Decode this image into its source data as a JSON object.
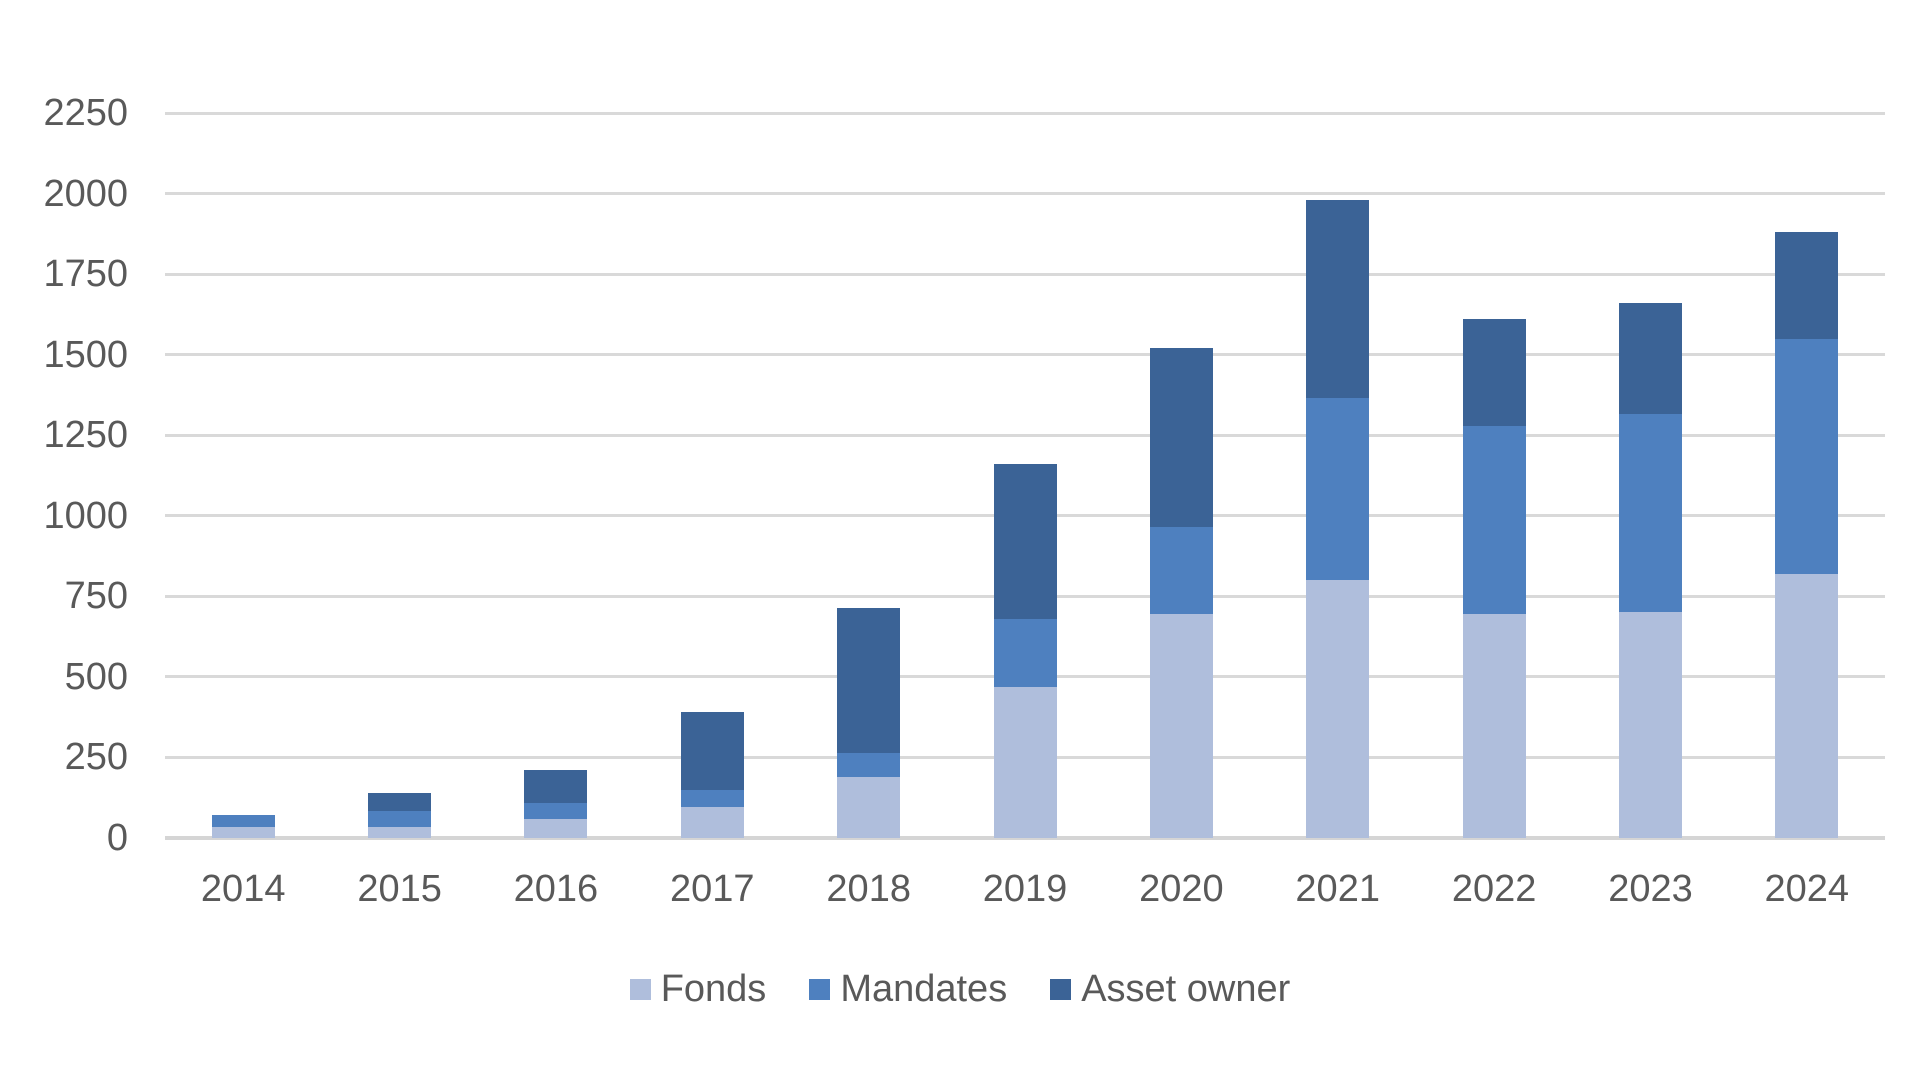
{
  "chart_data": {
    "type": "bar",
    "stacked": true,
    "title": "",
    "xlabel": "",
    "ylabel": "",
    "categories": [
      "2014",
      "2015",
      "2016",
      "2017",
      "2018",
      "2019",
      "2020",
      "2021",
      "2022",
      "2023",
      "2024"
    ],
    "series": [
      {
        "name": "Fonds",
        "color": "#AFBEDC",
        "values": [
          35,
          35,
          60,
          95,
          190,
          470,
          695,
          800,
          695,
          700,
          820
        ]
      },
      {
        "name": "Mandates",
        "color": "#4E80BF",
        "values": [
          35,
          50,
          50,
          55,
          75,
          210,
          270,
          565,
          585,
          615,
          730
        ]
      },
      {
        "name": "Asset owner",
        "color": "#3B6396",
        "values": [
          0,
          55,
          100,
          240,
          450,
          480,
          555,
          615,
          330,
          345,
          330
        ]
      }
    ],
    "totals": [
      70,
      140,
      210,
      390,
      715,
      1160,
      1520,
      1980,
      1610,
      1660,
      1880
    ],
    "ylim": [
      0,
      2250
    ],
    "ytick_step": 250,
    "ytick_labels": [
      "0",
      "250",
      "500",
      "750",
      "1000",
      "1250",
      "1500",
      "1750",
      "2000",
      "2250"
    ],
    "grid": true,
    "legend_position": "bottom",
    "legend_items": [
      "Fonds",
      "Mandates",
      "Asset owner"
    ]
  },
  "style": {
    "background_color": "#FFFFFF",
    "gridline_color": "#D9D9D9",
    "axis_line_color": "#D5D5D5",
    "text_color": "#595959"
  }
}
